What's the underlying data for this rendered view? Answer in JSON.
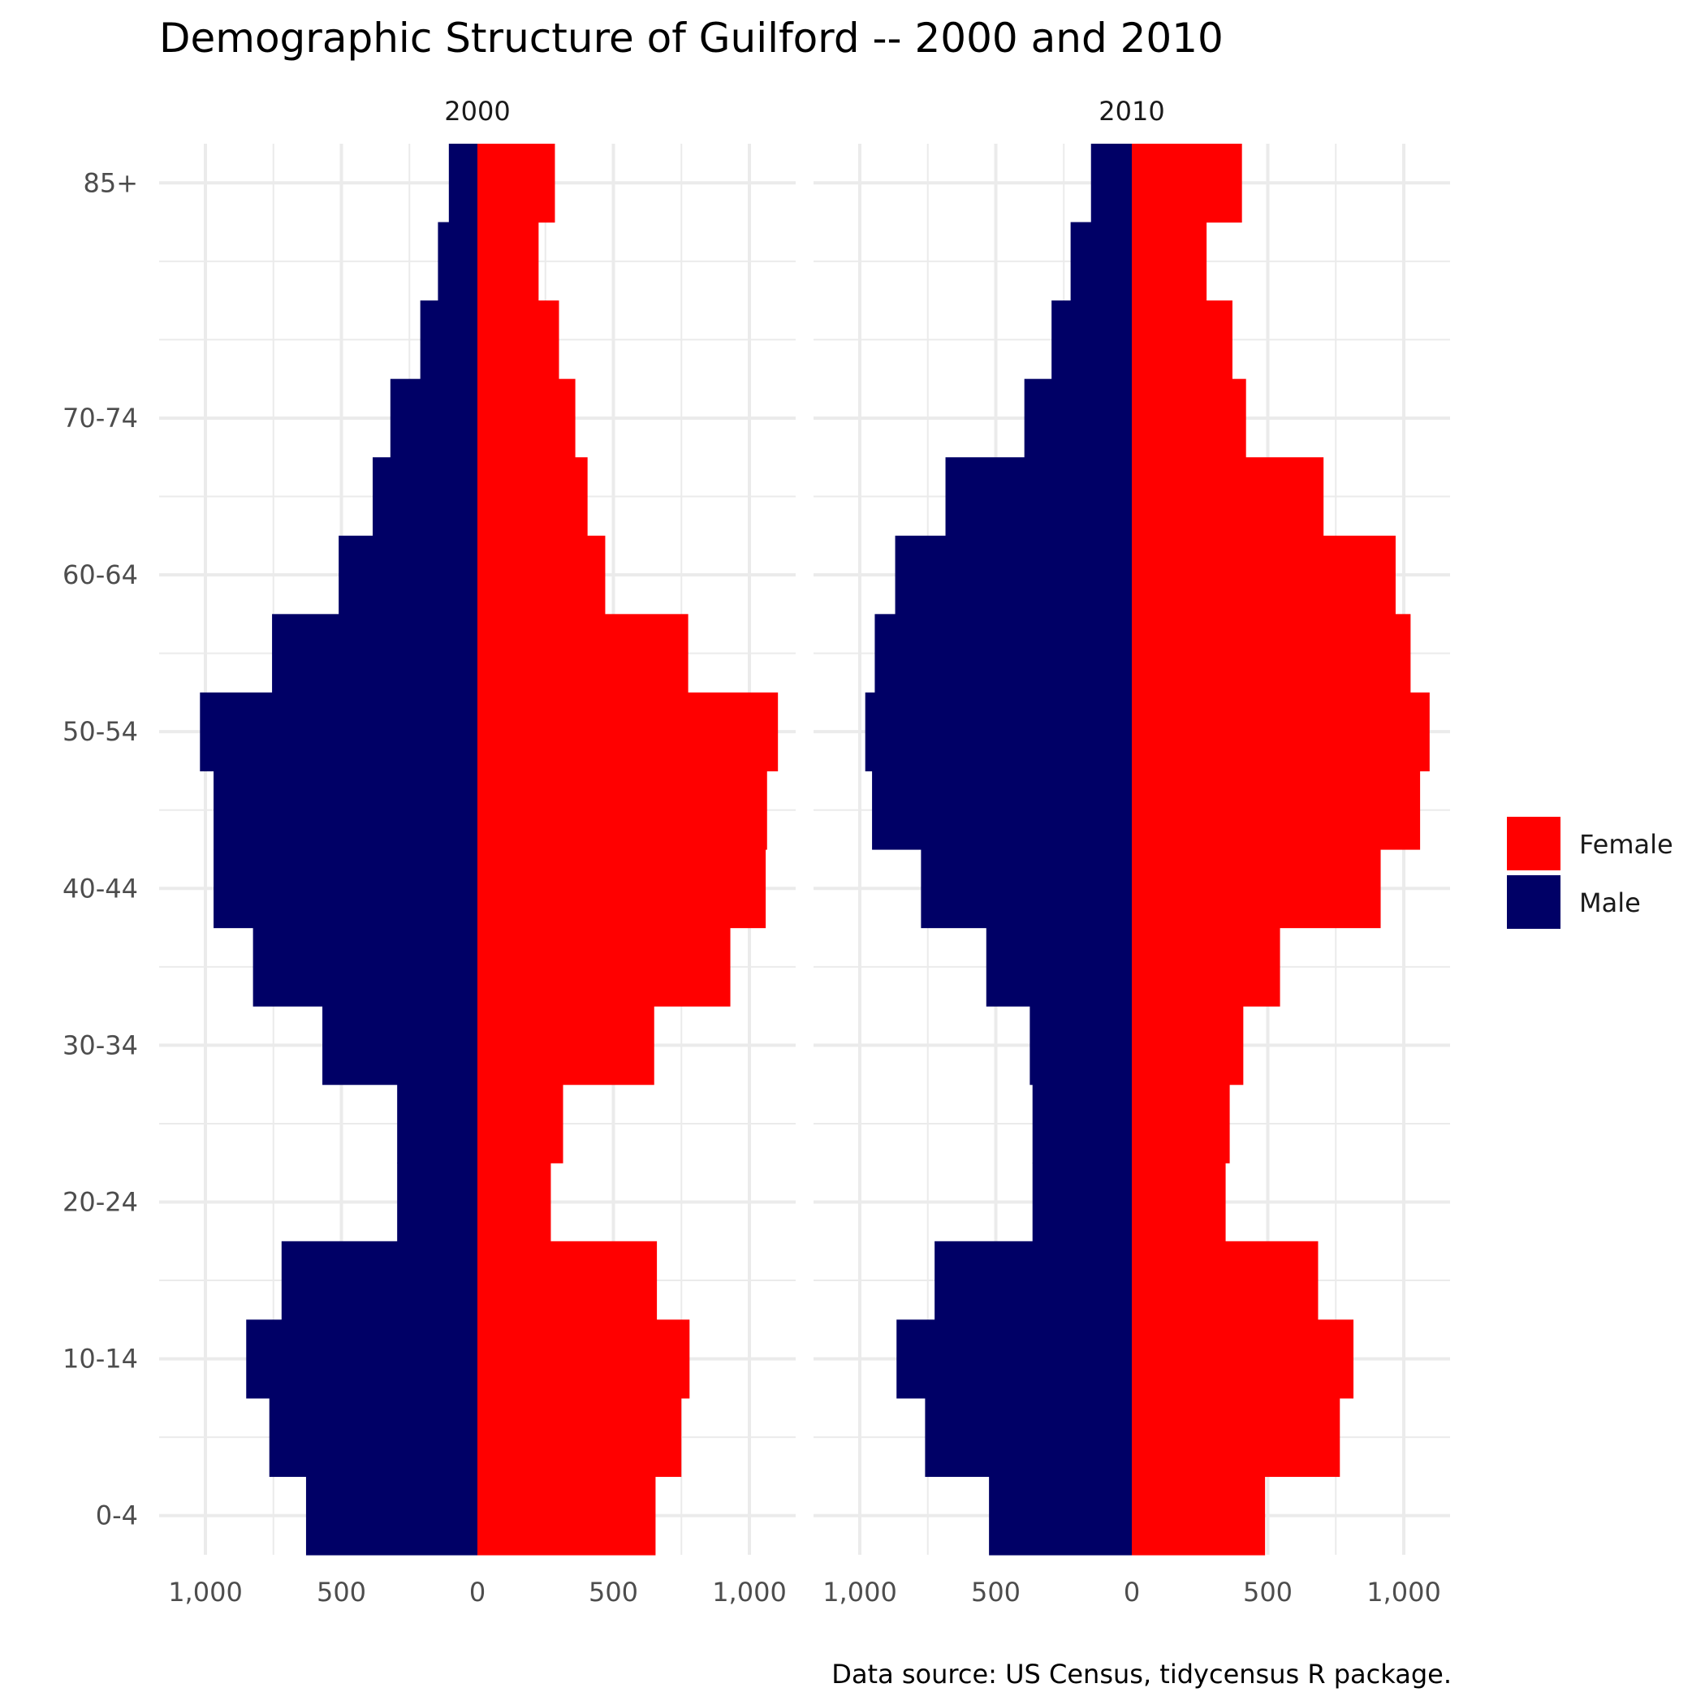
{
  "chart_data": {
    "type": "bar",
    "orientation": "horizontal",
    "subtype": "population-pyramid",
    "title": "Demographic Structure of Guilford -- 2000 and 2010",
    "caption": "Data source: US Census, tidycensus R package.",
    "xlabel": "",
    "ylabel": "",
    "xlim": [
      -1000,
      1000
    ],
    "x_ticks": [
      -1000,
      -500,
      0,
      500,
      1000
    ],
    "x_tick_labels": [
      "1,000",
      "500",
      "0",
      "500",
      "1,000"
    ],
    "categories": [
      "0-4",
      "5-9",
      "10-14",
      "15-19",
      "20-24",
      "25-29",
      "30-34",
      "35-39",
      "40-44",
      "45-49",
      "50-54",
      "55-59",
      "60-64",
      "65-69",
      "70-74",
      "75-79",
      "80-84",
      "85+"
    ],
    "y_tick_labels": [
      "0-4",
      "10-14",
      "20-24",
      "30-34",
      "40-44",
      "50-54",
      "60-64",
      "70-74",
      "85+"
    ],
    "legend": [
      {
        "label": "Female",
        "color": "#FF0000"
      },
      {
        "label": "Male",
        "color": "#000066"
      }
    ],
    "legend_position": "right",
    "grid": true,
    "panels": [
      {
        "label": "2000",
        "series": [
          {
            "name": "Female",
            "values": [
              655,
              750,
              780,
              660,
              270,
              315,
              650,
              930,
              1060,
              1065,
              1105,
              775,
              470,
              405,
              360,
              300,
              225,
              285
            ]
          },
          {
            "name": "Male",
            "values": [
              630,
              765,
              850,
              720,
              295,
              295,
              570,
              825,
              970,
              970,
              1020,
              755,
              510,
              385,
              320,
              210,
              145,
              105
            ]
          }
        ]
      },
      {
        "label": "2010",
        "series": [
          {
            "name": "Female",
            "values": [
              490,
              765,
              815,
              685,
              345,
              360,
              410,
              545,
              915,
              1060,
              1095,
              1025,
              970,
              705,
              420,
              370,
              275,
              405
            ]
          },
          {
            "name": "Male",
            "values": [
              525,
              760,
              865,
              725,
              365,
              365,
              375,
              535,
              775,
              955,
              980,
              945,
              870,
              685,
              395,
              295,
              225,
              150
            ]
          }
        ]
      }
    ]
  }
}
